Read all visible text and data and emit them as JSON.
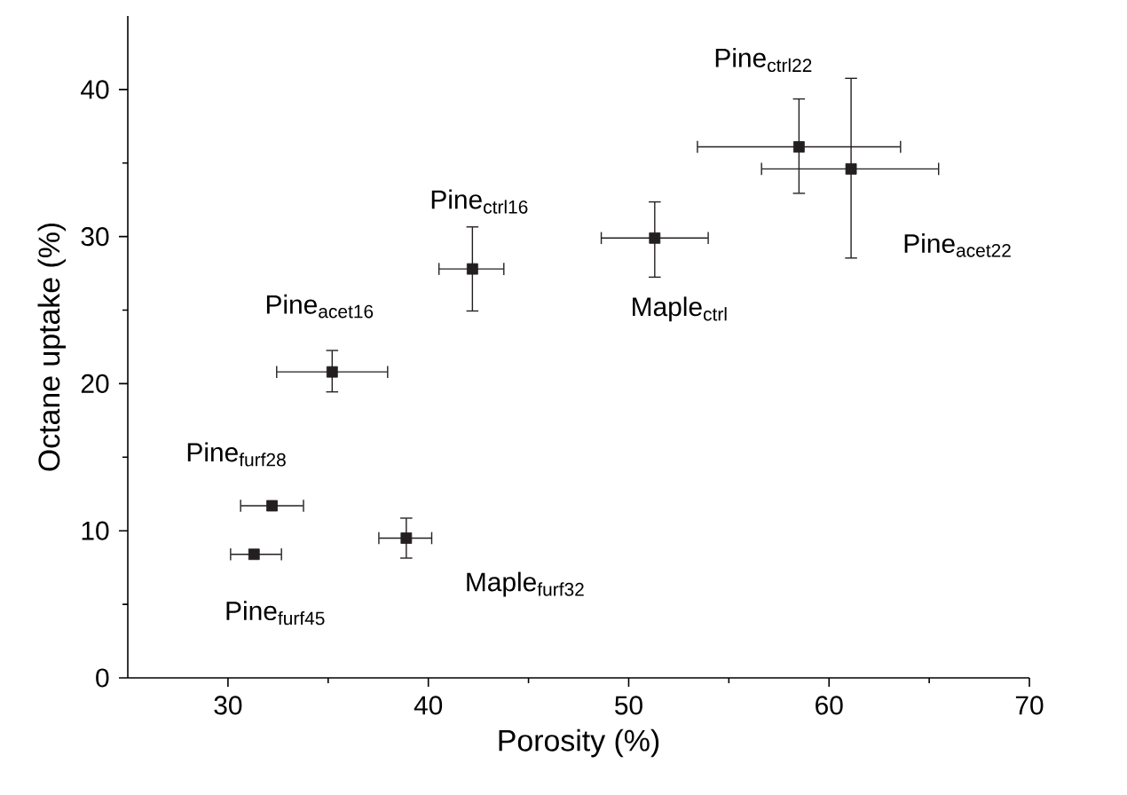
{
  "chart_data": {
    "type": "scatter",
    "xlabel": "Porosity (%)",
    "ylabel": "Octane uptake (%)",
    "x": [
      58.5,
      61.1,
      51.3,
      42.2,
      35.2,
      32.2,
      31.3,
      38.9
    ],
    "series": [
      {
        "color": "#231f20",
        "values": [
          36.1,
          34.6,
          29.9,
          27.8,
          20.8,
          11.7,
          8.4,
          9.5
        ],
        "errors": [
          [
            32.9,
            39.4
          ],
          [
            28.5,
            40.8
          ],
          [
            27.2,
            32.4
          ],
          [
            24.9,
            30.7
          ],
          [
            19.4,
            22.3
          ],
          null,
          null,
          [
            8.1,
            10.9
          ]
        ],
        "xerrors": [
          [
            53.4,
            63.6
          ],
          [
            56.6,
            65.5
          ],
          [
            48.6,
            54.0
          ],
          [
            40.5,
            43.8
          ],
          [
            32.4,
            38.0
          ],
          [
            30.6,
            33.8
          ],
          [
            30.1,
            32.7
          ],
          [
            37.5,
            40.2
          ]
        ]
      }
    ],
    "annotations": [
      {
        "text": "Pine$_{ctrl22}$",
        "x": 58.5,
        "y": 36.1
      },
      "Pine$_{acet22}$",
      {
        "text": "Maple$_{ctrl}$",
        "x": 51.3,
        "y": 29.9
      },
      {
        "text": "Pine$_{ctrl16}$",
        "x": 42.2,
        "y": 27.8
      },
      {
        "text": "Pine$_{acet16}$",
        "x": 35.2,
        "y": 20.8
      },
      {
        "text": "Pine$_{furf28}$",
        "x": 32.2,
        "y": 11.7
      },
      {
        "text": "Pine$_{furf45}$",
        "x": 31.3,
        "y": 8.4
      },
      {
        "text": "Maple$_{furf32}$",
        "x": 38.9,
        "y": 9.5
      }
    ],
    "xlim": [
      25,
      70
    ],
    "ylim": [
      0,
      45
    ],
    "xticks": [
      30,
      40,
      50,
      60,
      70
    ],
    "yticks": [
      0,
      10,
      20,
      30,
      40
    ],
    "marker": "square"
  }
}
